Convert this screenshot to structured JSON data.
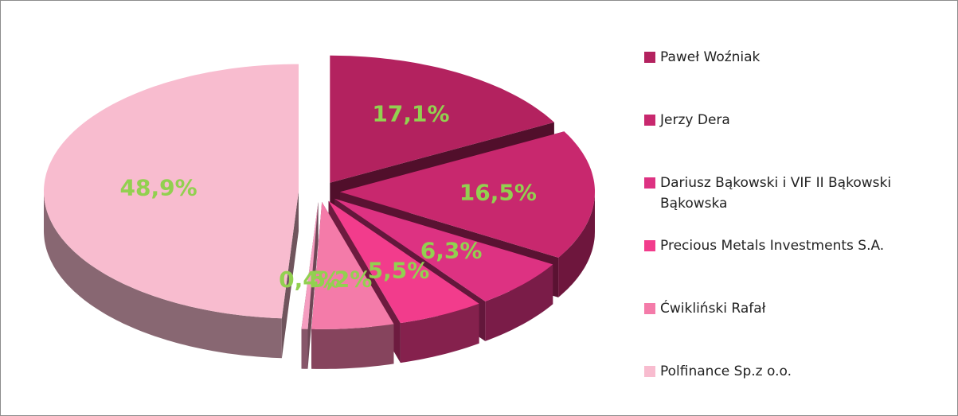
{
  "chart_data": {
    "type": "pie3d",
    "categories": [
      "Paweł Woźniak",
      "Jerzy Dera",
      "Dariusz Bąkowski i VIF II Bąkowski Bąkowska",
      "Precious Metals Investments S.A.",
      "Ćwikliński Rafał",
      null,
      "Polfinance Sp.z o.o."
    ],
    "values": [
      17.1,
      16.5,
      6.3,
      5.5,
      5.2,
      0.4,
      48.9
    ],
    "value_labels": [
      "17,1%",
      "16,5%",
      "6,3%",
      "5,5%",
      "5,2%",
      "0,4%",
      "48,9%"
    ],
    "colors": [
      "#b3225f",
      "#c8286e",
      "#dd3282",
      "#f23c8c",
      "#f47ba9",
      "#f59dc0",
      "#f8bccf"
    ],
    "label_color": "#92d050",
    "legend": "right"
  }
}
